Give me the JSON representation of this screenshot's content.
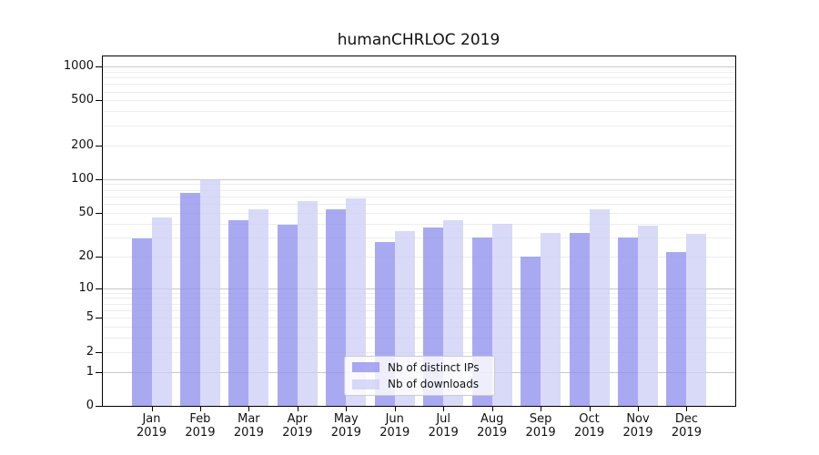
{
  "chart_data": {
    "type": "bar",
    "title": "humanCHRLOC 2019",
    "x": {
      "months": [
        "Jan",
        "Feb",
        "Mar",
        "Apr",
        "May",
        "Jun",
        "Jul",
        "Aug",
        "Sep",
        "Oct",
        "Nov",
        "Dec"
      ],
      "year": "2019"
    },
    "series": [
      {
        "name": "Nb of distinct IPs",
        "color": "#a9a9f2",
        "values": [
          29,
          75,
          43,
          39,
          54,
          27,
          37,
          30,
          20,
          33,
          30,
          22
        ]
      },
      {
        "name": "Nb of downloads",
        "color": "#d9d9f8",
        "values": [
          45,
          100,
          54,
          63,
          67,
          34,
          43,
          40,
          33,
          54,
          38,
          32
        ]
      }
    ],
    "y_axis": {
      "scale": "log1p",
      "ticks": [
        0,
        1,
        2,
        5,
        10,
        20,
        50,
        100,
        200,
        500,
        1000
      ],
      "ylim": [
        0,
        1250
      ],
      "major_gridlines": [
        1,
        10,
        100,
        1000
      ]
    },
    "legend": {
      "position": "lower center"
    },
    "grid": "on"
  },
  "colors": {
    "background": "#ffffff",
    "axis": "#000000",
    "grid_major": "#c9c9c9",
    "grid_minor": "#ededed",
    "legend_border": "#cccccc",
    "text": "#111111"
  }
}
